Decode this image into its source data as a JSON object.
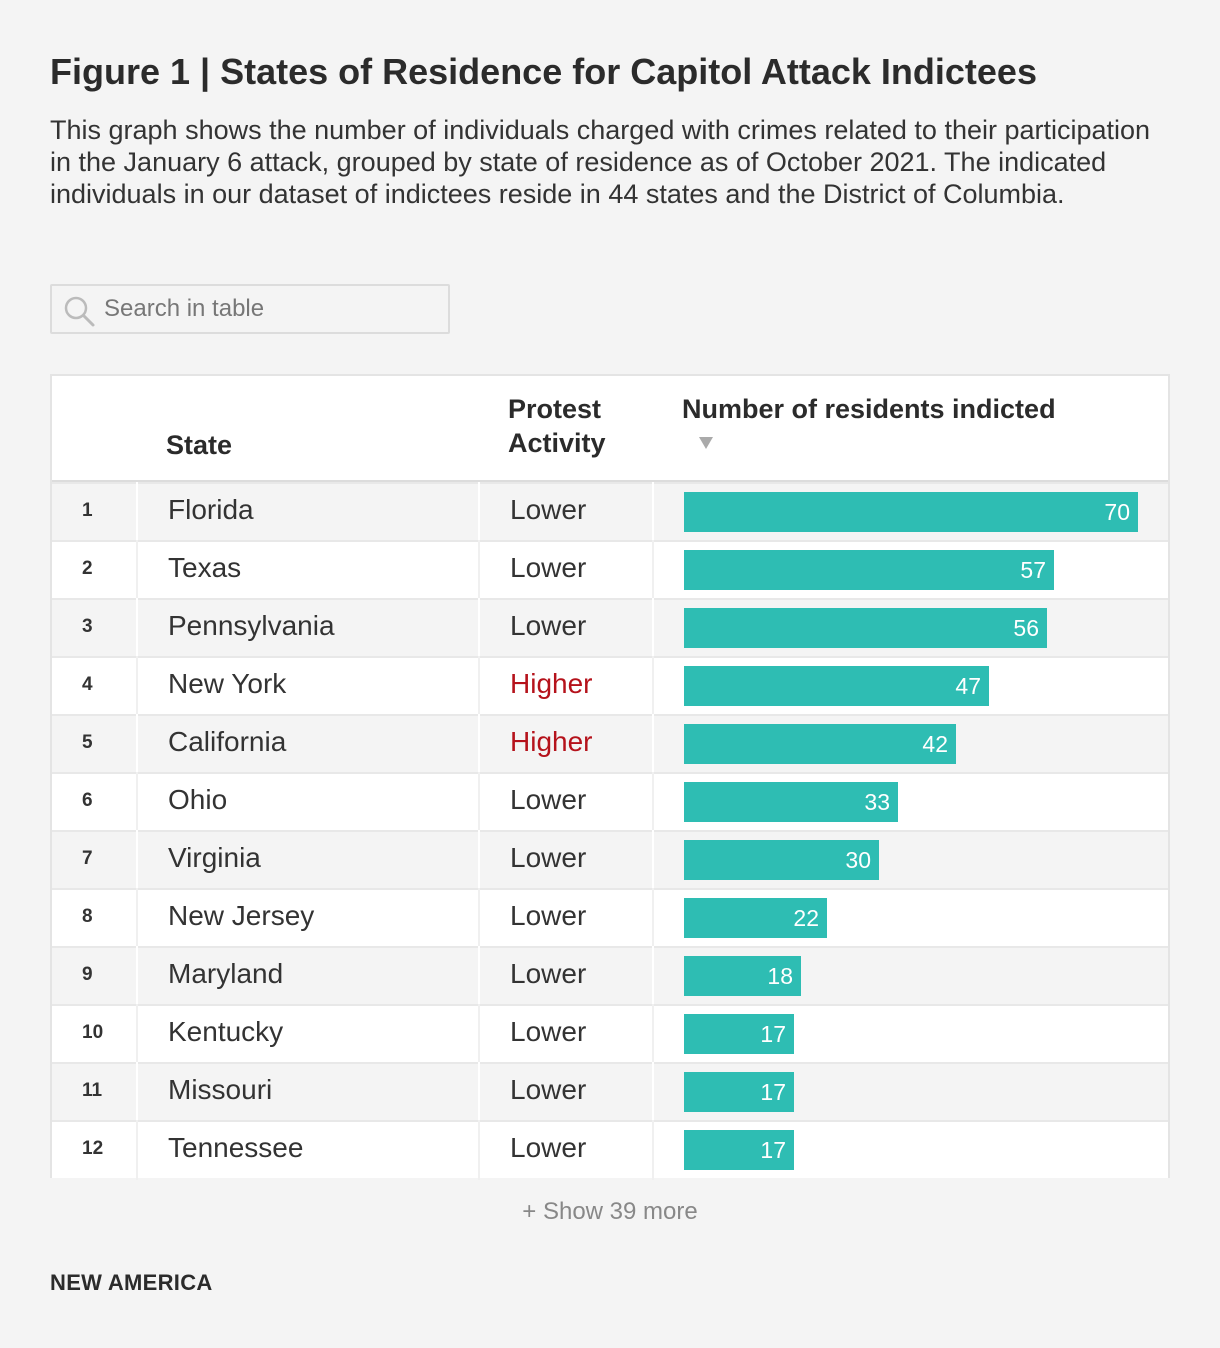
{
  "title": "Figure 1 | States of Residence for Capitol Attack Indictees",
  "subtitle": "This graph shows the number of individuals charged with crimes related to their participation in the January 6 attack, grouped by state of residence as of October 2021. The indicated individuals in our dataset of indictees reside in 44 states and the District of Columbia.",
  "search": {
    "placeholder": "Search in table",
    "icon": "search-icon"
  },
  "table": {
    "headers": {
      "state": "State",
      "protest": "Protest Activity",
      "count": "Number of residents indicted"
    },
    "sort_icon": "sort-descending-icon"
  },
  "colors": {
    "bar": "#2ebdb3",
    "higher": "#b5121b"
  },
  "chart_data": {
    "type": "bar",
    "orientation": "horizontal",
    "categories": [
      "Florida",
      "Texas",
      "Pennsylvania",
      "New York",
      "California",
      "Ohio",
      "Virginia",
      "New Jersey",
      "Maryland",
      "Kentucky",
      "Missouri",
      "Tennessee"
    ],
    "ranks": [
      "1",
      "2",
      "3",
      "4",
      "5",
      "6",
      "7",
      "8",
      "9",
      "10",
      "11",
      "12"
    ],
    "protest_activity": [
      "Lower",
      "Lower",
      "Lower",
      "Higher",
      "Higher",
      "Lower",
      "Lower",
      "Lower",
      "Lower",
      "Lower",
      "Lower",
      "Lower"
    ],
    "values": [
      70,
      57,
      56,
      47,
      42,
      33,
      30,
      22,
      18,
      17,
      17,
      17
    ],
    "xlim": [
      0,
      70
    ],
    "grid": false,
    "legend": "none"
  },
  "show_more": "+ Show 39 more",
  "source": "NEW AMERICA"
}
